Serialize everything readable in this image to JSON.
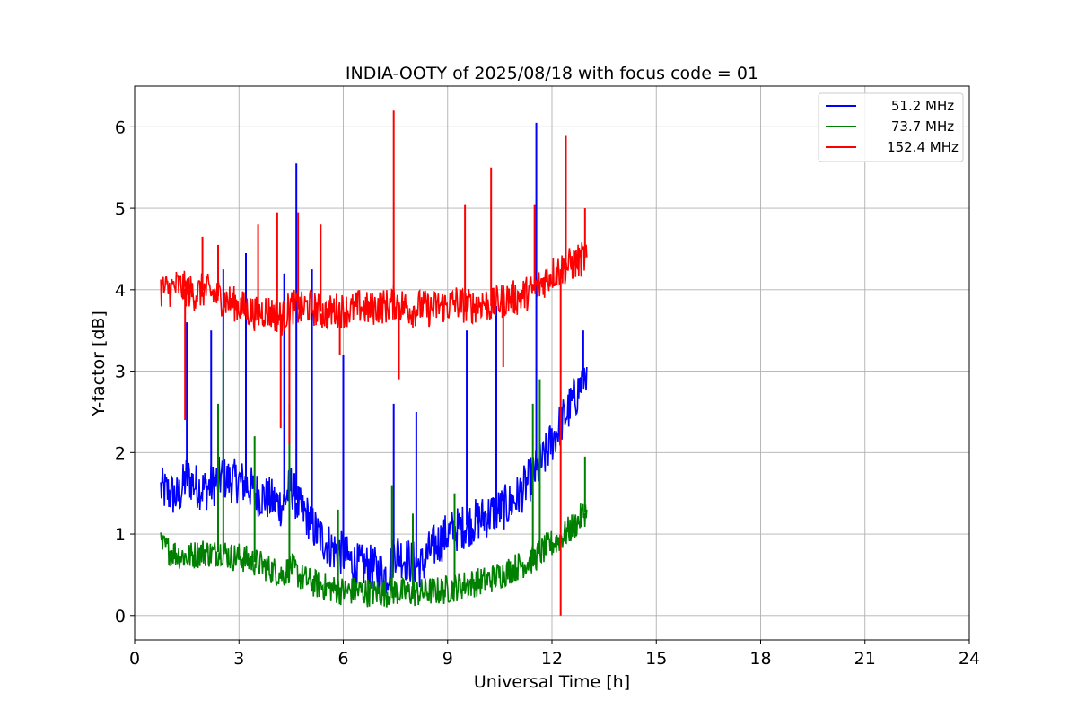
{
  "chart_data": {
    "type": "line",
    "title": "INDIA-OOTY of 2025/08/18 with focus code = 01",
    "xlabel": "Universal Time [h]",
    "ylabel": "Y-factor [dB]",
    "xlim": [
      0,
      24
    ],
    "ylim": [
      -0.3,
      6.5
    ],
    "xticks": [
      0,
      3,
      6,
      9,
      12,
      15,
      18,
      21,
      24
    ],
    "yticks": [
      0,
      1,
      2,
      3,
      4,
      5,
      6
    ],
    "grid": true,
    "legend_position": "top-right",
    "series": [
      {
        "name": "51.2 MHz",
        "color": "#0000ff",
        "x": [
          0.75,
          1.0,
          1.25,
          1.5,
          1.75,
          2.0,
          2.25,
          2.5,
          2.75,
          3.0,
          3.25,
          3.5,
          3.75,
          4.0,
          4.25,
          4.5,
          4.75,
          5.0,
          5.25,
          5.5,
          5.75,
          6.0,
          6.25,
          6.5,
          6.75,
          7.0,
          7.25,
          7.5,
          7.75,
          8.0,
          8.25,
          8.5,
          8.75,
          9.0,
          9.25,
          9.5,
          9.75,
          10.0,
          10.25,
          10.5,
          10.75,
          11.0,
          11.25,
          11.5,
          11.75,
          12.0,
          12.25,
          12.5,
          12.75,
          13.0
        ],
        "y": [
          1.55,
          1.5,
          1.45,
          1.7,
          1.6,
          1.55,
          1.6,
          1.7,
          1.65,
          1.65,
          1.6,
          1.5,
          1.45,
          1.4,
          1.35,
          1.6,
          1.3,
          1.2,
          1.0,
          0.9,
          0.8,
          0.75,
          0.65,
          0.6,
          0.6,
          0.55,
          0.5,
          0.8,
          0.7,
          0.65,
          0.6,
          0.8,
          0.9,
          1.0,
          1.05,
          1.1,
          1.15,
          1.2,
          1.25,
          1.3,
          1.35,
          1.45,
          1.6,
          1.75,
          1.9,
          2.15,
          2.35,
          2.55,
          2.75,
          3.05
        ],
        "spikes": [
          [
            1.5,
            3.6
          ],
          [
            2.2,
            3.5
          ],
          [
            2.55,
            4.25
          ],
          [
            3.2,
            4.45
          ],
          [
            4.3,
            4.2
          ],
          [
            4.65,
            5.55
          ],
          [
            5.1,
            4.25
          ],
          [
            6.0,
            3.2
          ],
          [
            7.45,
            2.6
          ],
          [
            8.1,
            2.5
          ],
          [
            9.55,
            3.5
          ],
          [
            10.4,
            3.8
          ],
          [
            11.55,
            6.05
          ],
          [
            12.9,
            3.5
          ]
        ]
      },
      {
        "name": "73.7 MHz",
        "color": "#008000",
        "x": [
          0.75,
          1.0,
          1.25,
          1.5,
          1.75,
          2.0,
          2.25,
          2.5,
          2.75,
          3.0,
          3.25,
          3.5,
          3.75,
          4.0,
          4.25,
          4.5,
          4.75,
          5.0,
          5.25,
          5.5,
          5.75,
          6.0,
          6.25,
          6.5,
          6.75,
          7.0,
          7.25,
          7.5,
          7.75,
          8.0,
          8.25,
          8.5,
          8.75,
          9.0,
          9.25,
          9.5,
          9.75,
          10.0,
          10.25,
          10.5,
          10.75,
          11.0,
          11.25,
          11.5,
          11.75,
          12.0,
          12.25,
          12.5,
          12.75,
          13.0
        ],
        "y": [
          0.85,
          0.8,
          0.75,
          0.72,
          0.75,
          0.78,
          0.75,
          0.8,
          0.72,
          0.72,
          0.68,
          0.65,
          0.6,
          0.55,
          0.5,
          0.6,
          0.48,
          0.42,
          0.38,
          0.35,
          0.32,
          0.3,
          0.3,
          0.3,
          0.28,
          0.28,
          0.28,
          0.3,
          0.28,
          0.28,
          0.28,
          0.3,
          0.3,
          0.32,
          0.35,
          0.38,
          0.4,
          0.42,
          0.45,
          0.5,
          0.55,
          0.6,
          0.65,
          0.7,
          0.8,
          0.88,
          0.95,
          1.05,
          1.15,
          1.3
        ],
        "spikes": [
          [
            2.4,
            2.6
          ],
          [
            2.55,
            3.25
          ],
          [
            3.45,
            2.2
          ],
          [
            4.45,
            2.6
          ],
          [
            5.85,
            1.3
          ],
          [
            7.4,
            1.6
          ],
          [
            8.0,
            1.25
          ],
          [
            9.2,
            1.5
          ],
          [
            11.45,
            2.6
          ],
          [
            11.65,
            2.9
          ],
          [
            12.95,
            1.95
          ]
        ]
      },
      {
        "name": "152.4 MHz",
        "color": "#ff0000",
        "x": [
          0.75,
          1.0,
          1.25,
          1.5,
          1.75,
          2.0,
          2.25,
          2.5,
          2.75,
          3.0,
          3.25,
          3.5,
          3.75,
          4.0,
          4.25,
          4.5,
          4.75,
          5.0,
          5.25,
          5.5,
          5.75,
          6.0,
          6.25,
          6.5,
          6.75,
          7.0,
          7.25,
          7.5,
          7.75,
          8.0,
          8.25,
          8.5,
          8.75,
          9.0,
          9.25,
          9.5,
          9.75,
          10.0,
          10.25,
          10.5,
          10.75,
          11.0,
          11.25,
          11.5,
          11.75,
          12.0,
          12.25,
          12.5,
          12.75,
          13.0
        ],
        "y": [
          4.0,
          4.0,
          4.05,
          4.0,
          3.95,
          4.0,
          3.95,
          3.9,
          3.85,
          3.8,
          3.75,
          3.7,
          3.75,
          3.7,
          3.65,
          3.8,
          3.75,
          3.8,
          3.75,
          3.7,
          3.75,
          3.75,
          3.75,
          3.8,
          3.75,
          3.8,
          3.8,
          3.85,
          3.8,
          3.75,
          3.8,
          3.75,
          3.8,
          3.8,
          3.85,
          3.8,
          3.8,
          3.85,
          3.8,
          3.85,
          3.9,
          3.9,
          3.95,
          4.0,
          4.1,
          4.2,
          4.25,
          4.3,
          4.35,
          4.4
        ],
        "spikes": [
          [
            1.95,
            4.65
          ],
          [
            2.4,
            4.55
          ],
          [
            3.55,
            4.8
          ],
          [
            4.1,
            4.95
          ],
          [
            4.7,
            4.95
          ],
          [
            5.35,
            4.8
          ],
          [
            7.45,
            6.2
          ],
          [
            9.5,
            5.05
          ],
          [
            10.25,
            5.5
          ],
          [
            11.5,
            5.05
          ],
          [
            12.4,
            5.9
          ],
          [
            12.95,
            5.0
          ]
        ],
        "dips": [
          [
            1.45,
            2.4
          ],
          [
            4.2,
            2.3
          ],
          [
            4.45,
            2.1
          ],
          [
            5.9,
            3.2
          ],
          [
            7.6,
            2.9
          ],
          [
            10.6,
            3.05
          ],
          [
            12.25,
            0.0
          ]
        ]
      }
    ]
  }
}
